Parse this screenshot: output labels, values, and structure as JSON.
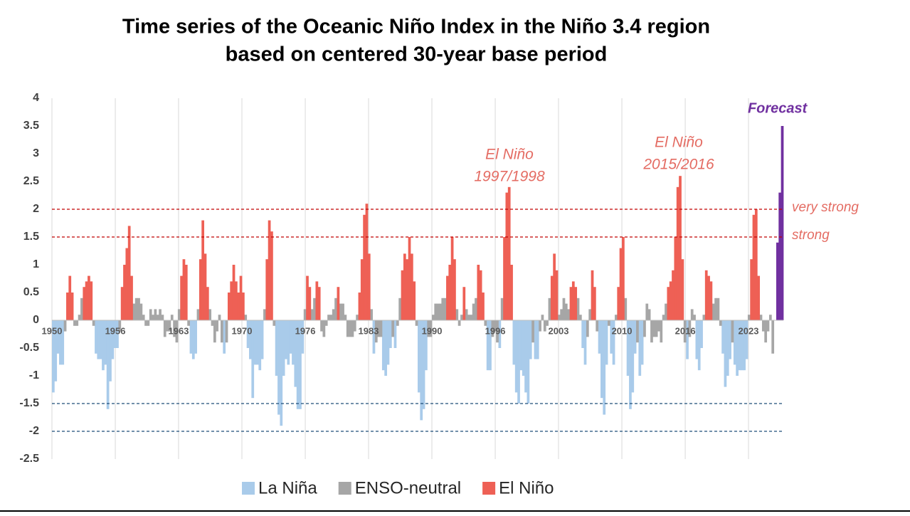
{
  "chart_data": {
    "type": "bar",
    "title": [
      "Time series of the Oceanic Niño Index in the Niño 3.4 region",
      "based on centered 30-year base period"
    ],
    "xlim": [
      1950,
      2027
    ],
    "xticks": [
      1950,
      {
        "value": 1956.67,
        "label": "1956"
      },
      {
        "value": 1963.33,
        "label": "1963"
      },
      1970,
      {
        "value": 1976.67,
        "label": "1976"
      },
      {
        "value": 1983.33,
        "label": "1983"
      },
      1990,
      {
        "value": 1996.67,
        "label": "1996"
      },
      {
        "value": 2003.33,
        "label": "2003"
      },
      2010,
      {
        "value": 2016.67,
        "label": "2016"
      },
      {
        "value": 2023.33,
        "label": "2023"
      }
    ],
    "ylim": [
      -2.5,
      4
    ],
    "yticks": [
      -2.5,
      -2,
      -1.5,
      -1,
      -0.5,
      0,
      0.5,
      1,
      1.5,
      2,
      2.5,
      3,
      3.5,
      4
    ],
    "grid": true,
    "series": [
      {
        "name": "La Niña",
        "color": "#a9cbea",
        "x": [
          1950,
          1950.25,
          1950.5,
          1950.75,
          1951,
          1954.5,
          1954.75,
          1955,
          1955.25,
          1955.5,
          1955.75,
          1956,
          1956.25,
          1956.5,
          1956.75,
          1964.5,
          1964.75,
          1965,
          1968,
          1970.5,
          1970.75,
          1971,
          1971.25,
          1971.5,
          1971.75,
          1972,
          1973.5,
          1973.75,
          1974,
          1974.25,
          1974.5,
          1974.75,
          1975,
          1975.25,
          1975.5,
          1975.75,
          1976,
          1976.25,
          1983.75,
          1984.75,
          1985,
          1985.25,
          1985.5,
          1986,
          1988.5,
          1988.75,
          1989,
          1989.25,
          1995.75,
          1996,
          1997,
          1998.5,
          1998.75,
          1999,
          1999.25,
          1999.5,
          1999.75,
          2000,
          2000.25,
          2000.75,
          2001,
          2005.75,
          2006,
          2007.5,
          2007.75,
          2008,
          2008.25,
          2008.75,
          2009,
          2010.5,
          2010.75,
          2011,
          2011.25,
          2011.75,
          2012,
          2016.75,
          2017.75,
          2018,
          2018.25,
          2020.5,
          2020.75,
          2021,
          2021.25,
          2021.75,
          2022,
          2022.25,
          2022.5,
          2022.75,
          2023
        ],
        "values": [
          -1.3,
          -1.1,
          -0.6,
          -0.8,
          -0.8,
          -0.6,
          -0.7,
          -0.7,
          -0.9,
          -0.8,
          -1.6,
          -1.1,
          -0.7,
          -0.5,
          -0.5,
          -0.6,
          -0.7,
          -0.6,
          -0.6,
          -0.5,
          -0.7,
          -1.4,
          -0.8,
          -0.8,
          -0.9,
          -0.7,
          -1.0,
          -1.7,
          -1.9,
          -1.0,
          -0.7,
          -0.8,
          -0.6,
          -0.8,
          -1.2,
          -1.6,
          -1.6,
          -0.6,
          -0.6,
          -0.9,
          -1.0,
          -0.8,
          -0.5,
          -0.5,
          -1.3,
          -1.8,
          -1.6,
          -0.9,
          -0.9,
          -0.9,
          -0.5,
          -0.8,
          -1.3,
          -1.5,
          -0.9,
          -1.0,
          -1.3,
          -1.5,
          -0.7,
          -0.7,
          -0.7,
          -0.5,
          -0.8,
          -0.6,
          -1.4,
          -1.7,
          -0.8,
          -0.6,
          -0.8,
          -1.0,
          -1.6,
          -1.3,
          -0.6,
          -1.0,
          -0.8,
          -0.7,
          -0.7,
          -0.9,
          -0.5,
          -0.6,
          -1.2,
          -1.0,
          -0.7,
          -0.8,
          -1.0,
          -0.9,
          -0.9,
          -0.9,
          -0.7
        ]
      },
      {
        "name": "ENSO-neutral",
        "color": "#a6a6a6",
        "x": [
          1951.25,
          1952.25,
          1952.5,
          1952.75,
          1953,
          1954.25,
          1957,
          1958.5,
          1958.75,
          1959,
          1959.25,
          1959.5,
          1959.75,
          1960,
          1960.25,
          1960.5,
          1960.75,
          1961,
          1961.25,
          1961.5,
          1961.75,
          1962,
          1962.25,
          1962.5,
          1962.75,
          1963,
          1963.25,
          1964.25,
          1965.25,
          1966.5,
          1966.75,
          1967,
          1967.25,
          1967.5,
          1967.75,
          1968.25,
          1970.25,
          1972.25,
          1973.25,
          1976.5,
          1977.25,
          1977.5,
          1978.25,
          1978.5,
          1978.75,
          1979,
          1979.25,
          1979.5,
          1979.75,
          1980.25,
          1980.5,
          1980.75,
          1981,
          1981.25,
          1981.5,
          1981.75,
          1982,
          1983.5,
          1984,
          1984.25,
          1984.5,
          1985.75,
          1986.25,
          1986.5,
          1988.25,
          1989.5,
          1989.75,
          1990,
          1990.25,
          1990.5,
          1990.75,
          1991,
          1991.25,
          1992.5,
          1992.75,
          1993,
          1993.5,
          1993.75,
          1994,
          1994.25,
          1994.5,
          1995.5,
          1996.25,
          1996.5,
          1996.75,
          1997.25,
          2000.5,
          2001.25,
          2001.5,
          2001.75,
          2002,
          2002.25,
          2003.25,
          2003.5,
          2003.75,
          2004,
          2004.25,
          2005.25,
          2005.5,
          2006.25,
          2006.5,
          2007.25,
          2008.5,
          2009.25,
          2010.25,
          2011.5,
          2012.25,
          2012.5,
          2012.75,
          2013,
          2013.25,
          2013.5,
          2013.75,
          2014,
          2014.25,
          2014.5,
          2016.5,
          2017,
          2017.25,
          2017.5,
          2018.5,
          2019.5,
          2019.75,
          2020,
          2020.25,
          2021.5,
          2023.25,
          2024.5,
          2024.75,
          2025,
          2025.25,
          2025.5,
          2025.75
        ],
        "values": [
          -0.2,
          -0.1,
          -0.1,
          0.1,
          0.4,
          -0.1,
          -0.2,
          0.3,
          0.4,
          0.4,
          0.3,
          0.1,
          -0.1,
          -0.1,
          0.2,
          0.1,
          0.2,
          0.1,
          0.2,
          0.1,
          -0.3,
          -0.2,
          -0.2,
          0.1,
          -0.3,
          -0.4,
          0.2,
          -0.1,
          0.2,
          0.2,
          -0.1,
          -0.4,
          -0.2,
          0.1,
          -0.4,
          -0.4,
          0.1,
          0.2,
          -0.1,
          0.2,
          0.2,
          0.4,
          -0.2,
          -0.3,
          -0.1,
          0.1,
          0.1,
          0.2,
          0.4,
          0.3,
          0.3,
          0.1,
          -0.3,
          -0.3,
          -0.3,
          -0.2,
          0.1,
          0.2,
          -0.4,
          -0.3,
          -0.3,
          -0.3,
          -0.1,
          0.4,
          -0.1,
          -0.3,
          -0.3,
          0.1,
          0.3,
          0.3,
          0.3,
          0.4,
          0.4,
          0.2,
          -0.1,
          0.1,
          0.2,
          0.1,
          0.1,
          0.3,
          0.4,
          -0.1,
          -0.3,
          -0.2,
          -0.4,
          0.4,
          -0.4,
          -0.2,
          0.1,
          -0.2,
          -0.1,
          0.4,
          0.1,
          0.2,
          0.4,
          0.3,
          0.2,
          0.4,
          0.1,
          -0.3,
          0.2,
          -0.2,
          -0.1,
          0.1,
          0.4,
          -0.4,
          -0.3,
          0.3,
          0.2,
          -0.4,
          -0.3,
          -0.3,
          -0.2,
          -0.4,
          0.1,
          0.3,
          -0.4,
          -0.3,
          0.2,
          0.1,
          0.1,
          0.3,
          0.4,
          0.4,
          -0.1,
          -0.4,
          0.1,
          0.1,
          -0.2,
          -0.4,
          -0.2,
          0.1,
          -0.6
        ]
      },
      {
        "name": "El Niño",
        "color": "#ee6055",
        "x": [
          1951.5,
          1951.75,
          1952,
          1953.25,
          1953.5,
          1953.75,
          1954,
          1957.25,
          1957.5,
          1957.75,
          1958,
          1958.25,
          1963.5,
          1963.75,
          1964,
          1965.5,
          1965.75,
          1966,
          1966.25,
          1968.5,
          1968.75,
          1969,
          1969.25,
          1969.5,
          1969.75,
          1970,
          1972.5,
          1972.75,
          1973,
          1976.75,
          1977,
          1977.75,
          1978,
          1980,
          1982.25,
          1982.5,
          1982.75,
          1983,
          1983.25,
          1986.75,
          1987,
          1987.25,
          1987.5,
          1987.75,
          1988,
          1991.5,
          1991.75,
          1992,
          1992.25,
          1993.25,
          1994.75,
          1995,
          1995.25,
          1997.5,
          1997.75,
          1998,
          1998.25,
          2002.5,
          2002.75,
          2003,
          2004.5,
          2004.75,
          2005,
          2006.75,
          2007,
          2009.5,
          2009.75,
          2010,
          2014.75,
          2015,
          2015.25,
          2015.5,
          2015.75,
          2016,
          2016.25,
          2018.75,
          2019,
          2019.25,
          2023.5,
          2023.75,
          2024,
          2024.25
        ],
        "values": [
          0.5,
          0.8,
          0.5,
          0.6,
          0.7,
          0.8,
          0.7,
          0.6,
          1.0,
          1.3,
          1.7,
          0.8,
          0.8,
          1.1,
          1.0,
          1.1,
          1.8,
          1.2,
          0.6,
          0.5,
          0.7,
          1.0,
          0.7,
          0.5,
          0.8,
          0.5,
          1.1,
          1.8,
          1.6,
          0.8,
          0.6,
          0.7,
          0.6,
          0.6,
          0.5,
          1.1,
          1.9,
          2.1,
          1.2,
          0.9,
          1.2,
          1.1,
          1.5,
          1.2,
          0.7,
          0.8,
          1.0,
          1.5,
          1.1,
          0.6,
          1.0,
          0.9,
          0.5,
          1.5,
          2.3,
          2.4,
          1.0,
          0.8,
          1.2,
          0.9,
          0.6,
          0.7,
          0.6,
          0.9,
          0.6,
          0.6,
          1.3,
          1.5,
          0.6,
          0.7,
          0.9,
          1.5,
          2.4,
          2.6,
          1.1,
          0.9,
          0.8,
          0.7,
          1.1,
          1.9,
          2.0,
          0.8
        ]
      }
    ],
    "forecast": {
      "label": "Forecast",
      "color": "#7030a0",
      "x": [
        2026.25,
        2026.5,
        2026.75
      ],
      "values": [
        1.4,
        2.3,
        3.5
      ]
    },
    "reference_lines": [
      {
        "value": 2,
        "label": "very strong",
        "color": "#c00000"
      },
      {
        "value": 1.5,
        "label": "strong",
        "color": "#c00000"
      },
      {
        "value": -1.5,
        "color": "#1f4e79"
      },
      {
        "value": -2,
        "color": "#1f4e79"
      }
    ],
    "annotations": [
      {
        "lines": [
          "El Niño",
          "1997/1998"
        ]
      },
      {
        "lines": [
          "El Niño",
          "2015/2016"
        ]
      }
    ]
  }
}
